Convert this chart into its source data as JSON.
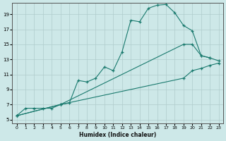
{
  "xlabel": "Humidex (Indice chaleur)",
  "bg_color": "#cde8e8",
  "grid_color": "#b0cccc",
  "line_color": "#1a7a6e",
  "xlim": [
    -0.5,
    23.5
  ],
  "ylim": [
    4.5,
    20.5
  ],
  "xticks": [
    0,
    1,
    2,
    3,
    4,
    5,
    6,
    7,
    8,
    9,
    10,
    11,
    12,
    13,
    14,
    15,
    16,
    17,
    18,
    19,
    20,
    21,
    22,
    23
  ],
  "yticks": [
    5,
    7,
    9,
    11,
    13,
    15,
    17,
    19
  ],
  "line1_x": [
    0,
    1,
    2,
    3,
    4,
    5,
    6,
    7,
    8,
    9,
    10,
    11,
    12,
    13,
    14,
    15,
    16,
    17,
    18,
    19,
    20,
    21,
    22
  ],
  "line1_y": [
    5.5,
    6.5,
    6.5,
    6.5,
    6.5,
    7.0,
    7.2,
    10.2,
    10.0,
    10.5,
    12.0,
    11.5,
    14.0,
    18.2,
    18.0,
    19.8,
    20.2,
    20.3,
    19.2,
    17.5,
    16.8,
    13.5,
    13.2
  ],
  "line2_x": [
    0,
    5,
    19,
    20,
    21,
    22,
    23
  ],
  "line2_y": [
    5.5,
    7.0,
    15.0,
    15.0,
    13.5,
    13.2,
    12.8
  ],
  "line3_x": [
    0,
    5,
    19,
    20,
    21,
    22,
    23
  ],
  "line3_y": [
    5.5,
    7.0,
    10.5,
    11.5,
    11.8,
    12.2,
    12.5
  ]
}
